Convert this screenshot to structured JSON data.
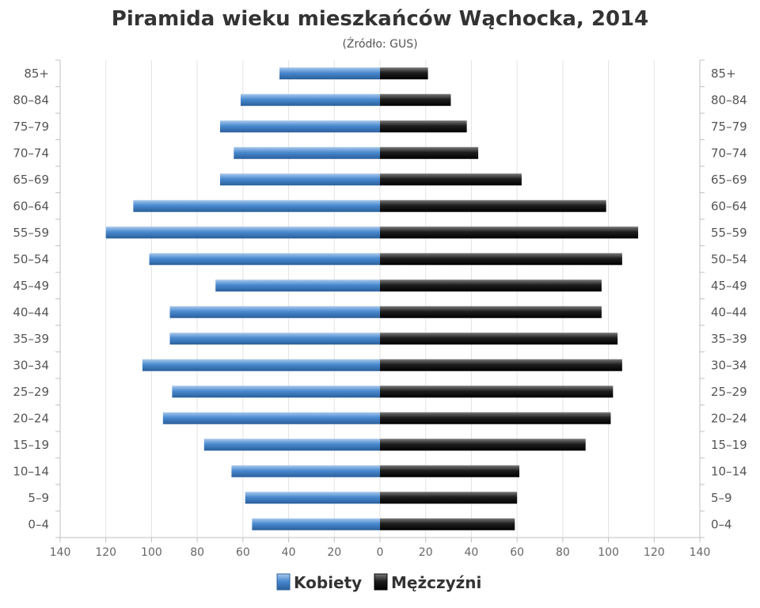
{
  "chart_data": {
    "type": "bar",
    "orientation": "horizontal-pyramid",
    "title": "Piramida wieku mieszkańców Wąchocka, 2014",
    "subtitle": "(Źródło: GUS)",
    "categories": [
      "85+",
      "80–84",
      "75–79",
      "70–74",
      "65–69",
      "60–64",
      "55–59",
      "50–54",
      "45–49",
      "40–44",
      "35–39",
      "30–34",
      "25–29",
      "20–24",
      "15–19",
      "10–14",
      "5–9",
      "0–4"
    ],
    "series": [
      {
        "name": "Kobiety",
        "side": "left",
        "color": "#3f7fc0",
        "values": [
          44,
          61,
          70,
          64,
          70,
          108,
          120,
          101,
          72,
          92,
          92,
          104,
          91,
          95,
          77,
          65,
          59,
          56
        ]
      },
      {
        "name": "Mężczyźni",
        "side": "right",
        "color": "#1a1a1a",
        "values": [
          21,
          31,
          38,
          43,
          62,
          99,
          113,
          106,
          97,
          97,
          104,
          106,
          102,
          101,
          90,
          61,
          60,
          59
        ]
      }
    ],
    "xlim": [
      -140,
      140
    ],
    "xticks": [
      -140,
      -120,
      -100,
      -80,
      -60,
      -40,
      -20,
      0,
      20,
      40,
      60,
      80,
      100,
      120,
      140
    ],
    "tick_labels": [
      "140",
      "120",
      "100",
      "80",
      "60",
      "40",
      "20",
      "0",
      "20",
      "40",
      "60",
      "80",
      "100",
      "120",
      "140"
    ],
    "grid": true,
    "legend_position": "bottom-center"
  }
}
